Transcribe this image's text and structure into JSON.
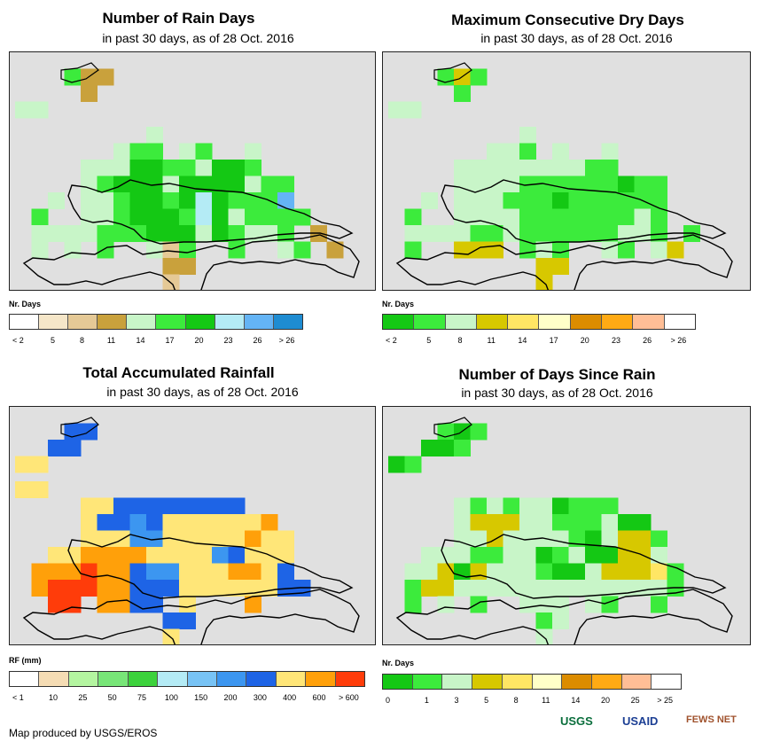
{
  "panels": [
    {
      "id": "rain_days",
      "title": "Number of Rain Days",
      "subtitle": "in past 30 days, as of 28 Oct. 2016",
      "legend_label": "Nr. Days",
      "legend_colors": [
        "#ffffff",
        "#f5e6c8",
        "#e5c996",
        "#c9a13c",
        "#c8f5c8",
        "#3ceb3c",
        "#14c814",
        "#b4ebf5",
        "#64b4f5",
        "#1e8cd2"
      ],
      "legend_ticks": [
        "< 2",
        "5",
        "8",
        "11",
        "14",
        "17",
        "20",
        "23",
        "26",
        "> 26"
      ],
      "palette": {
        "a": "#c8f5c8",
        "b": "#3ceb3c",
        "c": "#14c814",
        "d": "#c9a13c",
        "e": "#e5c996",
        "f": "#b4ebf5",
        "g": "#64b4f5"
      }
    },
    {
      "id": "dry_days",
      "title": "Maximum Consecutive Dry Days",
      "subtitle": "in past 30 days, as of 28 Oct. 2016",
      "legend_label": "Nr. Days",
      "legend_colors": [
        "#14c814",
        "#3ceb3c",
        "#c8f5c8",
        "#d7c800",
        "#ffe664",
        "#ffffc8",
        "#dc8c00",
        "#ffaa14",
        "#ffbe96",
        "#ffffff"
      ],
      "legend_ticks": [
        "< 2",
        "5",
        "8",
        "11",
        "14",
        "17",
        "20",
        "23",
        "26",
        "> 26"
      ],
      "palette": {
        "a": "#c8f5c8",
        "b": "#3ceb3c",
        "c": "#14c814",
        "d": "#d7c800",
        "e": "#ffe664",
        "f": "#ffffc8",
        "g": "#dc8c00"
      }
    },
    {
      "id": "rainfall",
      "title": "Total Accumulated Rainfall",
      "subtitle": "in past 30 days, as of 28 Oct. 2016",
      "legend_label": "RF (mm)",
      "legend_colors": [
        "#ffffff",
        "#f5dcb4",
        "#b4f5a0",
        "#78e678",
        "#3cd23c",
        "#b4ebf5",
        "#78c3f5",
        "#3c96f0",
        "#1e64e6",
        "#ffe678",
        "#ffa00a",
        "#ff3c0a"
      ],
      "legend_ticks": [
        "< 1",
        "10",
        "25",
        "50",
        "75",
        "100",
        "150",
        "200",
        "300",
        "400",
        "600",
        "> 600"
      ],
      "palette": {
        "a": "#ffe678",
        "b": "#1e64e6",
        "c": "#3c96f0",
        "d": "#ffa00a",
        "e": "#ff3c0a",
        "f": "#f5dcb4"
      }
    },
    {
      "id": "days_since_rain",
      "title": "Number of Days Since Rain",
      "subtitle": "in past 30 days, as of 28 Oct. 2016",
      "legend_label": "Nr. Days",
      "legend_colors": [
        "#14c814",
        "#3ceb3c",
        "#c8f5c8",
        "#d7c800",
        "#ffe664",
        "#ffffc8",
        "#dc8c00",
        "#ffaa14",
        "#ffbe96",
        "#ffffff"
      ],
      "legend_ticks": [
        "0",
        "1",
        "3",
        "5",
        "8",
        "11",
        "14",
        "20",
        "25",
        "> 25"
      ],
      "palette": {
        "a": "#c8f5c8",
        "b": "#3ceb3c",
        "c": "#14c814",
        "d": "#d7c800",
        "e": "#ffe664",
        "f": "#ffffc8"
      }
    }
  ],
  "credit": "Map produced by USGS/EROS",
  "logos": {
    "usgs": "USGS",
    "usaid": "USAID",
    "fews": "FEWS NET"
  }
}
